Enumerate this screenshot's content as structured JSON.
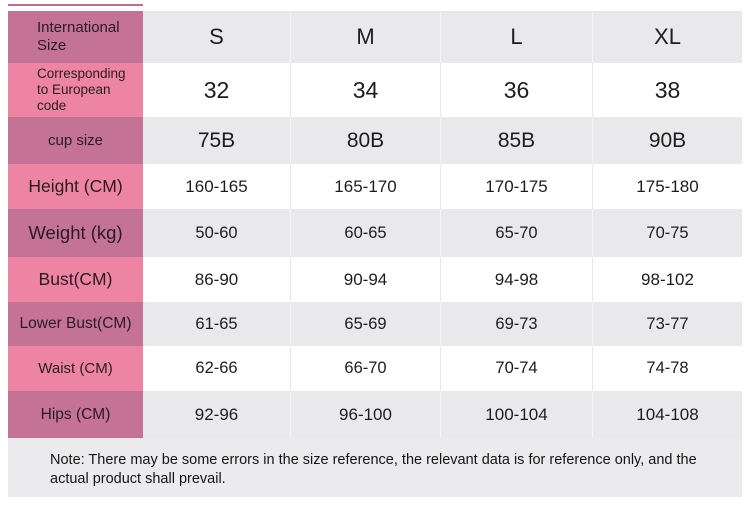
{
  "colors": {
    "label_dark_pink": "#c47397",
    "label_light_pink": "#ee84a4",
    "row_gray": "#e9e9eb",
    "row_white": "#ffffff",
    "note_background": "#ebebed",
    "accent_line_pink": "#c9688f",
    "text": "#1d1d1d"
  },
  "size_chart": {
    "rows": [
      {
        "label": "International Size",
        "values": [
          "S",
          "M",
          "L",
          "XL"
        ]
      },
      {
        "label": "Corresponding to European code",
        "values": [
          "32",
          "34",
          "36",
          "38"
        ]
      },
      {
        "label": "cup size",
        "values": [
          "75B",
          "80B",
          "85B",
          "90B"
        ]
      },
      {
        "label": "Height (CM)",
        "values": [
          "160-165",
          "165-170",
          "170-175",
          "175-180"
        ]
      },
      {
        "label": "Weight (kg)",
        "values": [
          "50-60",
          "60-65",
          "65-70",
          "70-75"
        ]
      },
      {
        "label": "Bust(CM)",
        "values": [
          "86-90",
          "90-94",
          "94-98",
          "98-102"
        ]
      },
      {
        "label": "Lower Bust(CM)",
        "values": [
          "61-65",
          "65-69",
          "69-73",
          "73-77"
        ]
      },
      {
        "label": "Waist (CM)",
        "values": [
          "62-66",
          "66-70",
          "70-74",
          "74-78"
        ]
      },
      {
        "label": "Hips (CM)",
        "values": [
          "92-96",
          "96-100",
          "100-104",
          "104-108"
        ]
      }
    ],
    "note": "Note: There may be some errors in the size reference, the relevant data is for reference only, and the actual product shall prevail."
  }
}
